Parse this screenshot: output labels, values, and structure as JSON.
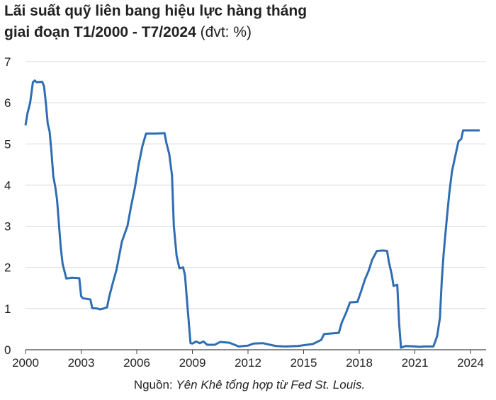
{
  "chart_data": {
    "type": "line",
    "title": "Lãi suất quỹ liên bang hiệu lực hàng tháng",
    "subtitle": "giai đoạn T1/2000 - T7/2024",
    "unit": "(đvt: %)",
    "source_prefix": "Nguồn:",
    "source": "Yên Khê tổng hợp từ Fed St. Louis.",
    "x": [
      2000.0,
      2000.1,
      2000.25,
      2000.4,
      2000.5,
      2000.6,
      2000.9,
      2001.0,
      2001.1,
      2001.2,
      2001.3,
      2001.4,
      2001.5,
      2001.6,
      2001.7,
      2001.8,
      2001.9,
      2002.0,
      2002.2,
      2002.5,
      2002.9,
      2003.0,
      2003.1,
      2003.5,
      2003.6,
      2003.9,
      2004.0,
      2004.2,
      2004.4,
      2004.5,
      2004.7,
      2004.9,
      2005.0,
      2005.2,
      2005.5,
      2005.7,
      2005.9,
      2006.1,
      2006.3,
      2006.5,
      2007.0,
      2007.5,
      2007.6,
      2007.75,
      2007.9,
      2008.0,
      2008.15,
      2008.3,
      2008.5,
      2008.6,
      2008.75,
      2008.9,
      2009.0,
      2009.2,
      2009.4,
      2009.6,
      2009.8,
      2010.2,
      2010.5,
      2011.0,
      2011.5,
      2012.0,
      2012.3,
      2012.8,
      2013.5,
      2014.0,
      2014.7,
      2015.0,
      2015.5,
      2015.95,
      2016.1,
      2016.9,
      2017.05,
      2017.3,
      2017.5,
      2017.9,
      2018.1,
      2018.3,
      2018.5,
      2018.7,
      2018.95,
      2019.3,
      2019.5,
      2019.6,
      2019.75,
      2019.85,
      2020.05,
      2020.15,
      2020.25,
      2020.5,
      2021.0,
      2021.25,
      2021.5,
      2022.0,
      2022.2,
      2022.35,
      2022.45,
      2022.55,
      2022.7,
      2022.85,
      2023.0,
      2023.15,
      2023.35,
      2023.5,
      2023.6,
      2024.5
    ],
    "series": [
      {
        "color": "#2f6db3",
        "values": [
          5.45,
          5.73,
          6.0,
          6.5,
          6.54,
          6.5,
          6.51,
          6.4,
          5.98,
          5.49,
          5.3,
          4.8,
          4.21,
          3.97,
          3.65,
          3.07,
          2.49,
          2.09,
          1.73,
          1.75,
          1.74,
          1.3,
          1.25,
          1.22,
          1.01,
          1.0,
          0.98,
          1.0,
          1.03,
          1.26,
          1.61,
          1.93,
          2.16,
          2.63,
          3.01,
          3.5,
          3.94,
          4.49,
          4.94,
          5.25,
          5.25,
          5.26,
          5.02,
          4.76,
          4.24,
          3.0,
          2.28,
          1.98,
          2.0,
          1.81,
          0.97,
          0.16,
          0.15,
          0.2,
          0.16,
          0.2,
          0.12,
          0.12,
          0.19,
          0.17,
          0.08,
          0.1,
          0.15,
          0.16,
          0.09,
          0.08,
          0.09,
          0.11,
          0.14,
          0.24,
          0.38,
          0.41,
          0.65,
          0.91,
          1.15,
          1.16,
          1.42,
          1.7,
          1.91,
          2.19,
          2.4,
          2.41,
          2.4,
          2.13,
          1.83,
          1.55,
          1.58,
          0.65,
          0.05,
          0.09,
          0.08,
          0.07,
          0.08,
          0.08,
          0.33,
          0.77,
          1.68,
          2.33,
          3.08,
          3.78,
          4.33,
          4.65,
          5.06,
          5.12,
          5.33,
          5.33
        ]
      }
    ],
    "xlim": [
      2000,
      2024.84
    ],
    "xticks": [
      2000,
      2003,
      2006,
      2009,
      2012,
      2015,
      2018,
      2021,
      2024
    ],
    "ylim": [
      0,
      7
    ],
    "yticks": [
      0,
      1,
      2,
      3,
      4,
      5,
      6,
      7
    ],
    "grid": true
  }
}
